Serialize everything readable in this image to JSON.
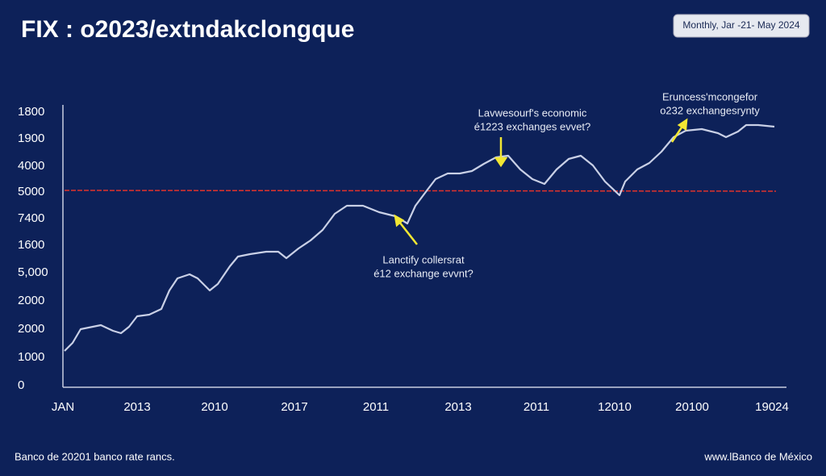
{
  "title": "FIX : o2023/extndakclongque",
  "badge": "Monthly, Jar -21- May 2024",
  "y_axis_labels": [
    "1800",
    "1900",
    "4000",
    "5000",
    "7400",
    "1600",
    "5,000",
    "2000",
    "2000",
    "1000",
    "0"
  ],
  "x_axis_labels": [
    "JAN",
    "2013",
    "2010",
    "2017",
    "2011",
    "2013",
    "2011",
    "12010",
    "20100",
    "19024"
  ],
  "annotations": [
    [
      "Lavwesourf's economic",
      "é1223 exchanges evvet?"
    ],
    [
      "Eruncess'mcongefor",
      "o232 exchangesrynty"
    ],
    [
      "Lanctify collersrat",
      "é12 exchange evvnt?"
    ]
  ],
  "footer": {
    "left": "Banco de 20201 banco rate rancs.",
    "right": "www.lBanco de México"
  }
}
